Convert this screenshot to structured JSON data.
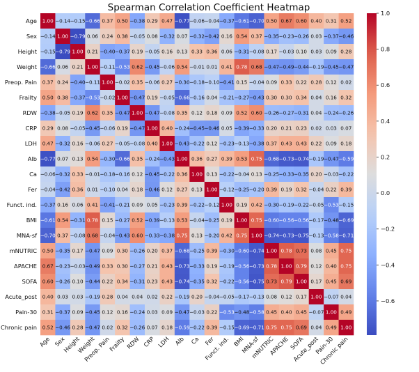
{
  "chart_data": {
    "type": "heatmap",
    "title": "Spearman Correlation Coefficient Heatmap",
    "variables": [
      "Age",
      "Sex",
      "Height",
      "Weight",
      "Preop. Pain",
      "Frailty",
      "RDW",
      "CRP",
      "LDH",
      "Alb",
      "Ca",
      "Fer",
      "Funct. ind.",
      "BMI",
      "MNA-sf",
      "mNUTRIC",
      "APACHE",
      "SOFA",
      "Acute_post",
      "Pain-30",
      "Chronic pain"
    ],
    "matrix": [
      [
        1.0,
        -0.14,
        -0.15,
        -0.66,
        0.37,
        0.5,
        -0.38,
        0.29,
        0.47,
        -0.77,
        -0.06,
        -0.04,
        -0.37,
        -0.61,
        -0.7,
        0.5,
        0.67,
        0.6,
        0.4,
        0.31,
        0.52
      ],
      [
        -0.14,
        1.0,
        -0.79,
        0.06,
        0.24,
        0.38,
        -0.05,
        0.08,
        -0.32,
        0.07,
        -0.32,
        -0.42,
        0.16,
        0.54,
        0.37,
        -0.35,
        -0.23,
        -0.26,
        0.03,
        -0.37,
        -0.46
      ],
      [
        -0.15,
        -0.79,
        1.0,
        0.21,
        -0.4,
        -0.37,
        0.19,
        -0.05,
        0.16,
        0.13,
        0.33,
        0.36,
        0.06,
        -0.31,
        -0.08,
        0.17,
        -0.03,
        0.1,
        0.03,
        0.09,
        0.28
      ],
      [
        -0.66,
        0.06,
        0.21,
        1.0,
        -0.11,
        -0.53,
        0.62,
        -0.45,
        -0.06,
        0.54,
        -0.01,
        0.01,
        0.41,
        0.78,
        0.68,
        -0.47,
        -0.49,
        -0.44,
        -0.19,
        -0.45,
        -0.47
      ],
      [
        0.37,
        0.24,
        -0.4,
        -0.11,
        1.0,
        -0.02,
        0.35,
        -0.06,
        0.27,
        -0.3,
        -0.18,
        -0.1,
        -0.41,
        0.15,
        -0.04,
        0.09,
        0.33,
        0.22,
        0.28,
        0.12,
        0.02
      ],
      [
        0.5,
        0.38,
        -0.37,
        -0.53,
        -0.02,
        1.0,
        -0.47,
        0.19,
        -0.05,
        -0.66,
        -0.16,
        0.04,
        -0.21,
        -0.27,
        -0.43,
        0.3,
        0.3,
        0.34,
        0.04,
        0.16,
        0.32
      ],
      [
        -0.38,
        -0.05,
        0.19,
        0.62,
        0.35,
        -0.47,
        1.0,
        -0.47,
        -0.08,
        0.35,
        0.12,
        0.18,
        0.09,
        0.52,
        0.6,
        -0.26,
        -0.27,
        -0.31,
        0.04,
        -0.24,
        -0.26
      ],
      [
        0.29,
        0.08,
        -0.05,
        -0.45,
        -0.06,
        0.19,
        -0.47,
        1.0,
        0.4,
        -0.24,
        -0.45,
        -0.46,
        0.05,
        -0.39,
        -0.33,
        0.2,
        0.21,
        0.23,
        0.02,
        0.03,
        0.07
      ],
      [
        0.47,
        -0.32,
        0.16,
        -0.06,
        0.27,
        -0.05,
        -0.08,
        0.4,
        1.0,
        -0.43,
        -0.22,
        0.12,
        -0.23,
        -0.13,
        -0.38,
        0.37,
        0.43,
        0.43,
        0.22,
        0.09,
        0.18
      ],
      [
        -0.77,
        0.07,
        0.13,
        0.54,
        -0.3,
        -0.66,
        0.35,
        -0.24,
        -0.43,
        1.0,
        0.36,
        0.27,
        0.39,
        0.53,
        0.75,
        -0.68,
        -0.73,
        -0.74,
        -0.19,
        -0.47,
        -0.59
      ],
      [
        -0.06,
        -0.32,
        0.33,
        -0.01,
        -0.18,
        -0.16,
        0.12,
        -0.45,
        -0.22,
        0.36,
        1.0,
        0.13,
        -0.22,
        -0.04,
        0.13,
        -0.25,
        -0.33,
        -0.35,
        0.2,
        -0.03,
        -0.22
      ],
      [
        -0.04,
        -0.42,
        0.36,
        0.01,
        -0.1,
        0.04,
        0.18,
        -0.46,
        0.12,
        0.27,
        0.13,
        1.0,
        -0.12,
        -0.25,
        -0.2,
        0.39,
        0.19,
        0.32,
        -0.04,
        0.22,
        0.39
      ],
      [
        -0.37,
        0.16,
        0.06,
        0.41,
        -0.41,
        -0.21,
        0.09,
        0.05,
        -0.23,
        0.39,
        -0.22,
        -0.12,
        1.0,
        0.19,
        0.42,
        -0.3,
        -0.19,
        -0.22,
        -0.05,
        -0.53,
        -0.15
      ],
      [
        -0.61,
        0.54,
        -0.31,
        0.78,
        0.15,
        -0.27,
        0.52,
        -0.39,
        -0.13,
        0.53,
        -0.04,
        -0.25,
        0.19,
        1.0,
        0.75,
        -0.6,
        -0.56,
        -0.56,
        -0.17,
        -0.48,
        -0.69
      ],
      [
        -0.7,
        0.37,
        -0.08,
        0.68,
        -0.04,
        -0.43,
        0.6,
        -0.33,
        -0.38,
        0.75,
        0.13,
        -0.2,
        0.42,
        0.75,
        1.0,
        -0.74,
        -0.73,
        -0.75,
        -0.13,
        -0.58,
        -0.71
      ],
      [
        0.5,
        -0.35,
        0.17,
        -0.47,
        0.09,
        0.3,
        -0.26,
        0.2,
        0.37,
        -0.68,
        -0.25,
        0.39,
        -0.3,
        -0.6,
        -0.74,
        1.0,
        0.78,
        0.73,
        0.08,
        0.45,
        0.75
      ],
      [
        0.67,
        -0.23,
        -0.03,
        -0.49,
        0.33,
        0.3,
        -0.27,
        0.21,
        0.43,
        -0.73,
        -0.33,
        0.19,
        -0.19,
        -0.56,
        -0.73,
        0.78,
        1.0,
        0.79,
        0.12,
        0.4,
        0.75
      ],
      [
        0.6,
        -0.26,
        0.1,
        -0.44,
        0.22,
        0.34,
        -0.31,
        0.23,
        0.43,
        -0.74,
        -0.35,
        0.32,
        -0.22,
        -0.56,
        -0.75,
        0.73,
        0.79,
        1.0,
        0.17,
        0.45,
        0.69
      ],
      [
        0.4,
        0.03,
        0.03,
        -0.19,
        0.28,
        0.04,
        0.04,
        0.02,
        0.22,
        -0.19,
        0.2,
        -0.04,
        -0.05,
        -0.17,
        -0.13,
        0.08,
        0.12,
        0.17,
        1.0,
        -0.07,
        0.04
      ],
      [
        0.31,
        -0.37,
        0.09,
        -0.45,
        0.12,
        0.16,
        -0.24,
        0.03,
        0.09,
        -0.47,
        -0.03,
        0.22,
        -0.53,
        -0.48,
        -0.58,
        0.45,
        0.4,
        0.45,
        -0.07,
        1.0,
        0.49
      ],
      [
        0.52,
        -0.46,
        0.28,
        -0.47,
        0.02,
        0.32,
        -0.26,
        0.07,
        0.18,
        -0.59,
        -0.22,
        0.39,
        -0.15,
        -0.69,
        -0.71,
        0.75,
        0.75,
        0.69,
        0.04,
        0.49,
        1.0
      ]
    ],
    "colorbar": {
      "range": [
        -0.79,
        1.0
      ],
      "ticks": [
        -0.6,
        -0.4,
        -0.2,
        0.0,
        0.2,
        0.4,
        0.6,
        0.8,
        1.0
      ],
      "tick_labels": [
        "−0.6",
        "−0.4",
        "−0.2",
        "0.0",
        "0.2",
        "0.4",
        "0.6",
        "0.8",
        "1.0"
      ],
      "colormap": "coolwarm"
    }
  }
}
